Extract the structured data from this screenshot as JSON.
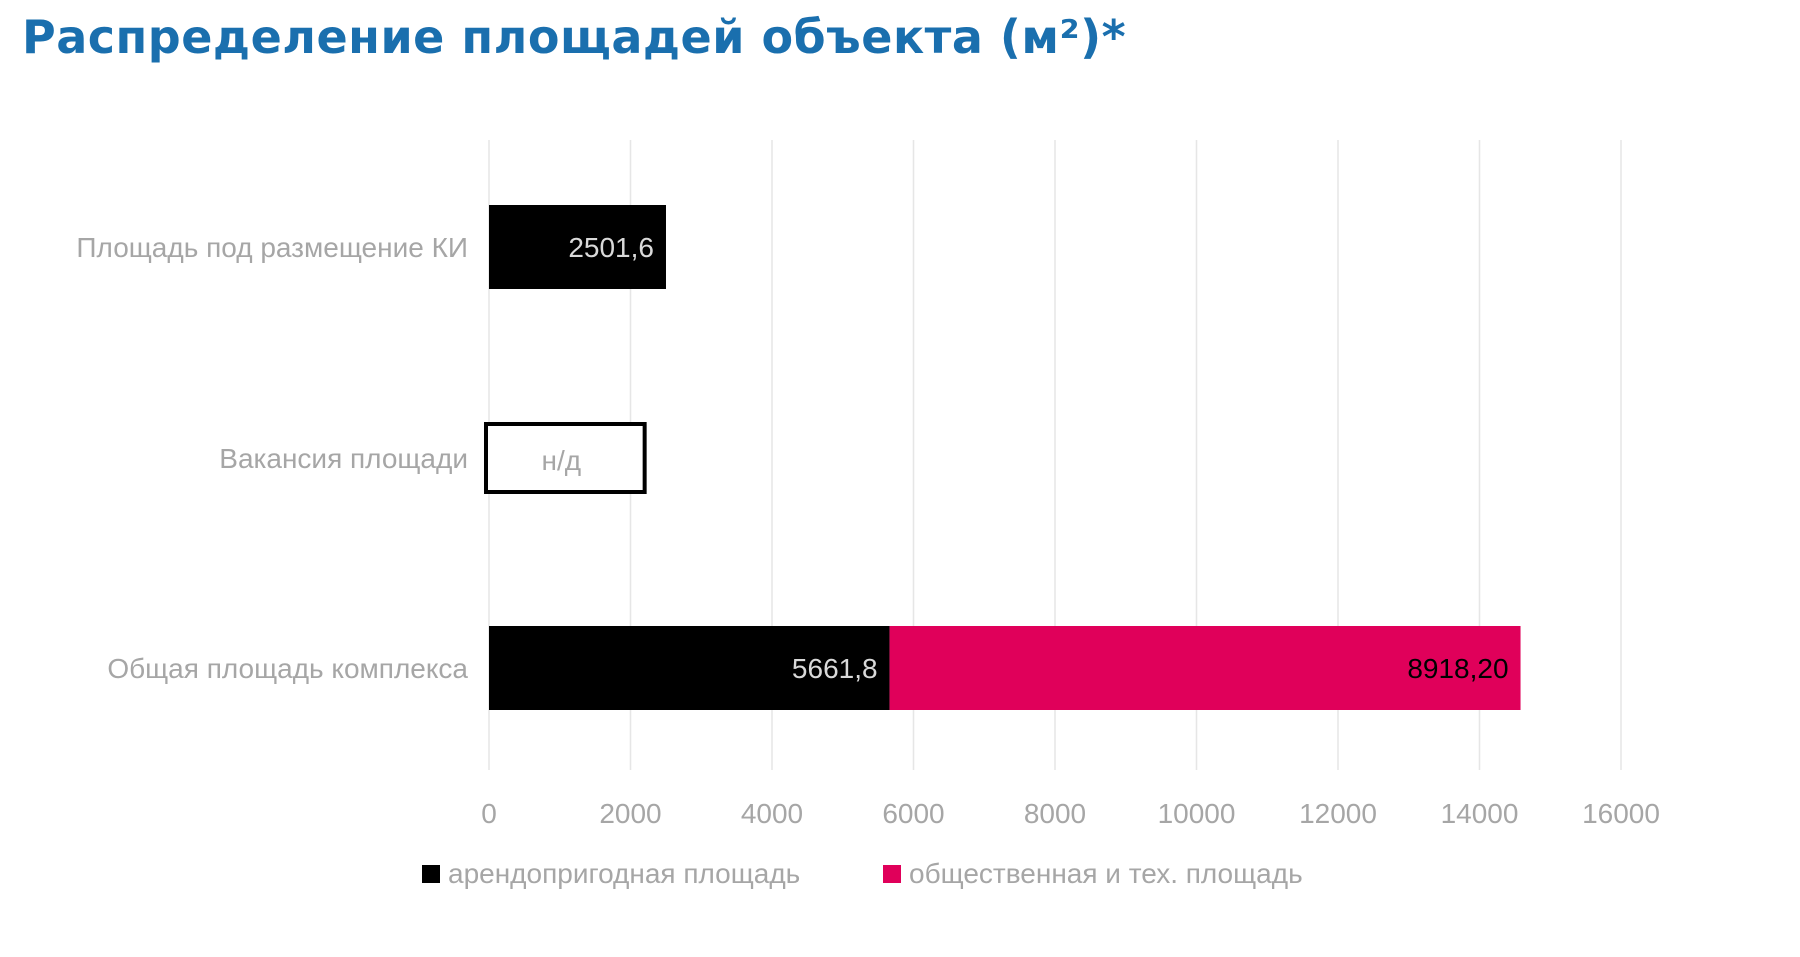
{
  "title": "Распределение площадей объекта (м²)*",
  "colors": {
    "title": "#1a6fae",
    "series_rentable": "#000000",
    "series_public": "#e0005a",
    "grid": "#e6e6e6",
    "axis_text": "#a6a6a6"
  },
  "chart_data": {
    "type": "bar",
    "orientation": "horizontal",
    "stacked": true,
    "title": "Распределение площадей объекта (м²)*",
    "categories": [
      "Площадь под размещение КИ",
      "Вакансия площади",
      "Общая площадь комплекса"
    ],
    "series": [
      {
        "name": "арендопригодная площадь",
        "color": "#000000",
        "values": [
          2501.6,
          null,
          5661.8
        ],
        "labels": [
          "2501,6",
          "",
          "5661,8"
        ]
      },
      {
        "name": "общественная и тех. площадь",
        "color": "#e0005a",
        "values": [
          null,
          null,
          8918.2
        ],
        "labels": [
          "",
          "",
          "8918,20"
        ]
      }
    ],
    "placeholder": {
      "category": "Вакансия площади",
      "label": "н/д",
      "outline_width_value": 2200
    },
    "x_ticks": [
      0,
      2000,
      4000,
      6000,
      8000,
      10000,
      12000,
      14000,
      16000
    ],
    "x_tick_labels": [
      "0",
      "2000",
      "4000",
      "6000",
      "8000",
      "10000",
      "12000",
      "14000",
      "16000"
    ],
    "xlim": [
      0,
      16000
    ],
    "grid": true,
    "legend_position": "bottom-center"
  }
}
